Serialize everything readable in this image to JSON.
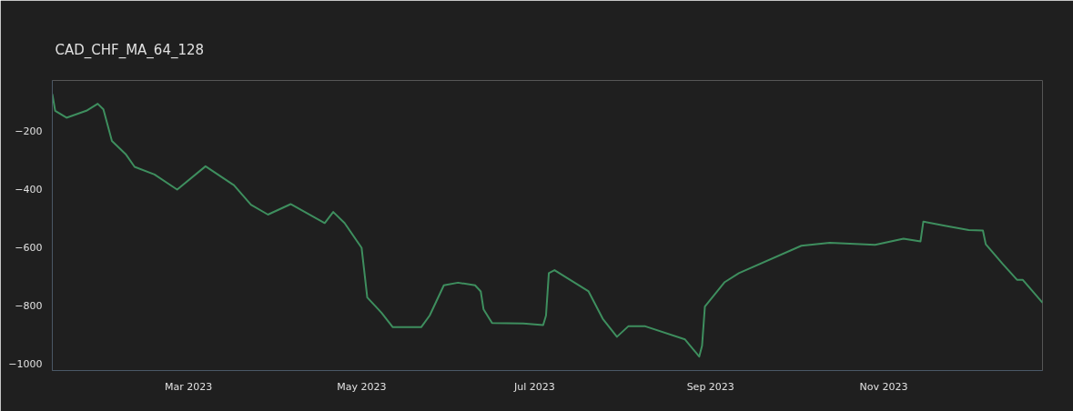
{
  "chart_data": {
    "type": "line",
    "title": "CAD_CHF_MA_64_128",
    "x": [
      "2023-01-12",
      "2023-01-13",
      "2023-01-17",
      "2023-01-24",
      "2023-01-28",
      "2023-01-30",
      "2023-02-02",
      "2023-02-07",
      "2023-02-10",
      "2023-02-17",
      "2023-02-25",
      "2023-03-07",
      "2023-03-17",
      "2023-03-23",
      "2023-03-29",
      "2023-04-06",
      "2023-04-18",
      "2023-04-21",
      "2023-04-25",
      "2023-05-01",
      "2023-05-03",
      "2023-05-08",
      "2023-05-12",
      "2023-05-22",
      "2023-05-25",
      "2023-05-30",
      "2023-06-04",
      "2023-06-10",
      "2023-06-12",
      "2023-06-13",
      "2023-06-16",
      "2023-06-27",
      "2023-07-04",
      "2023-07-05",
      "2023-07-06",
      "2023-07-08",
      "2023-07-20",
      "2023-07-25",
      "2023-07-30",
      "2023-08-03",
      "2023-08-09",
      "2023-08-23",
      "2023-08-28",
      "2023-08-29",
      "2023-08-30",
      "2023-09-06",
      "2023-09-11",
      "2023-10-03",
      "2023-10-13",
      "2023-10-29",
      "2023-11-08",
      "2023-11-14",
      "2023-11-15",
      "2023-11-23",
      "2023-12-01",
      "2023-12-06",
      "2023-12-07",
      "2023-12-13",
      "2023-12-18",
      "2023-12-20",
      "2023-12-27"
    ],
    "series": [
      {
        "color": "#3e8e5e",
        "values": [
          -72,
          -129,
          -153,
          -129,
          -105,
          -124,
          -233,
          -280,
          -322,
          -348,
          -400,
          -320,
          -385,
          -452,
          -486,
          -450,
          -515,
          -477,
          -515,
          -600,
          -771,
          -823,
          -873,
          -873,
          -833,
          -729,
          -720,
          -729,
          -750,
          -812,
          -859,
          -860,
          -866,
          -833,
          -687,
          -677,
          -750,
          -844,
          -906,
          -870,
          -870,
          -915,
          -974,
          -937,
          -802,
          -718,
          -687,
          -593,
          -583,
          -590,
          -569,
          -578,
          -510,
          -525,
          -539,
          -541,
          -588,
          -656,
          -710,
          -710,
          -789
        ]
      }
    ],
    "xlim": [
      "2023-01-12",
      "2023-12-27"
    ],
    "xticks": [
      {
        "value": "2023-03-01",
        "label": "Mar 2023"
      },
      {
        "value": "2023-05-01",
        "label": "May 2023"
      },
      {
        "value": "2023-07-01",
        "label": "Jul 2023"
      },
      {
        "value": "2023-09-01",
        "label": "Sep 2023"
      },
      {
        "value": "2023-11-01",
        "label": "Nov 2023"
      }
    ],
    "ylim": [
      -1022,
      -25
    ],
    "yticks": [
      {
        "value": -1000,
        "label": "−1000"
      },
      {
        "value": -800,
        "label": "−800"
      },
      {
        "value": -600,
        "label": "−600"
      },
      {
        "value": -400,
        "label": "−400"
      },
      {
        "value": -200,
        "label": "−200"
      }
    ],
    "grid": false,
    "line_style": "solid"
  }
}
